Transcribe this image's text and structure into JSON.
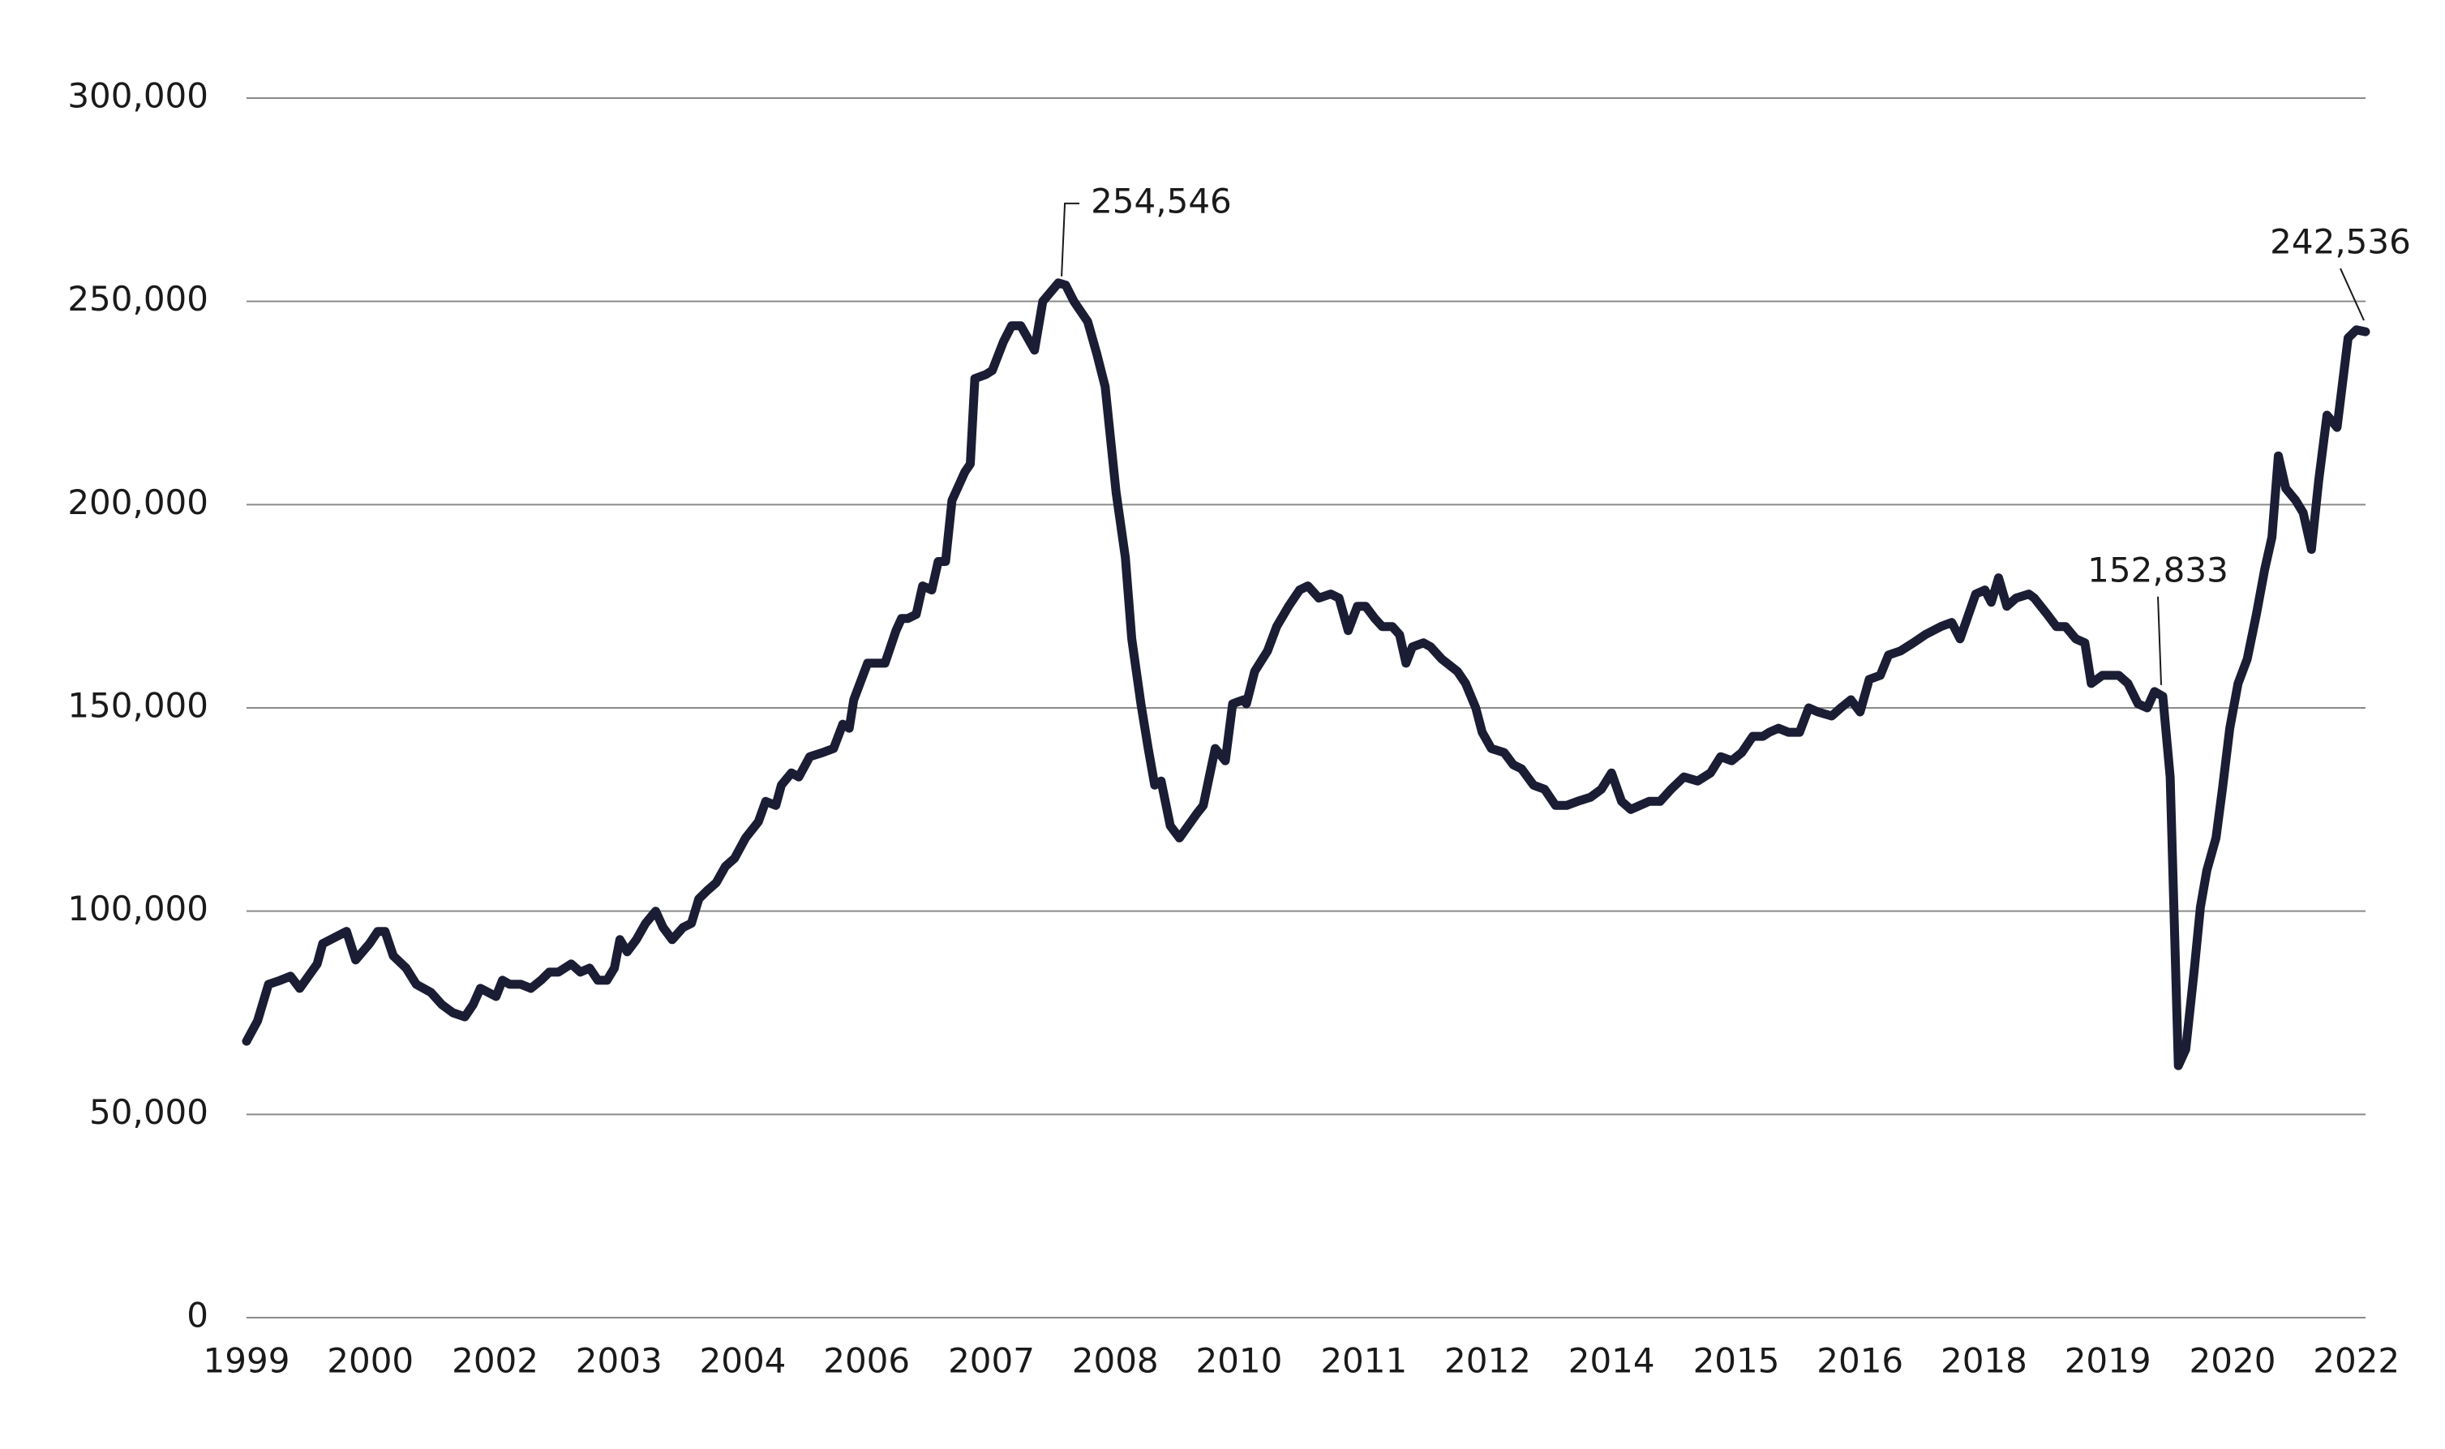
{
  "chart_data": {
    "type": "line",
    "x": [
      1999.0,
      1999.12,
      1999.24,
      1999.37,
      1999.48,
      1999.58,
      1999.77,
      1999.83,
      2000.09,
      2000.19,
      2000.34,
      2000.43,
      2000.51,
      2000.6,
      2000.74,
      2000.85,
      2001.01,
      2001.13,
      2001.25,
      2001.38,
      2001.47,
      2001.55,
      2001.72,
      2001.79,
      2001.87,
      2001.99,
      2002.1,
      2002.21,
      2002.3,
      2002.4,
      2002.54,
      2002.64,
      2002.74,
      2002.83,
      2002.93,
      2003.01,
      2003.07,
      2003.15,
      2003.25,
      2003.35,
      2003.46,
      2003.54,
      2003.64,
      2003.76,
      2003.85,
      2003.93,
      2004.02,
      2004.12,
      2004.22,
      2004.32,
      2004.44,
      2004.58,
      2004.66,
      2004.77,
      2004.83,
      2004.94,
      2005.02,
      2005.14,
      2005.28,
      2005.4,
      2005.5,
      2005.57,
      2005.62,
      2005.77,
      2005.91,
      2005.96,
      2006.08,
      2006.14,
      2006.21,
      2006.3,
      2006.37,
      2006.47,
      2006.54,
      2006.62,
      2006.69,
      2006.83,
      2006.89,
      2006.94,
      2007.06,
      2007.13,
      2007.25,
      2007.34,
      2007.44,
      2007.59,
      2007.68,
      2007.85,
      2007.93,
      2008.02,
      2008.17,
      2008.27,
      2008.36,
      2008.48,
      2008.58,
      2008.65,
      2008.75,
      2008.83,
      2008.9,
      2008.97,
      2009.07,
      2009.17,
      2009.36,
      2009.43,
      2009.56,
      2009.67,
      2009.75,
      2009.87,
      2009.9,
      2009.99,
      2010.13,
      2010.23,
      2010.36,
      2010.48,
      2010.57,
      2010.69,
      2010.82,
      2010.91,
      2011.01,
      2011.11,
      2011.2,
      2011.3,
      2011.38,
      2011.49,
      2011.57,
      2011.64,
      2011.71,
      2011.83,
      2011.91,
      2012.03,
      2012.2,
      2012.29,
      2012.4,
      2012.47,
      2012.57,
      2012.71,
      2012.81,
      2012.9,
      2013.03,
      2013.15,
      2013.27,
      2013.39,
      2013.51,
      2013.65,
      2013.77,
      2013.88,
      2013.99,
      2014.09,
      2014.19,
      2014.29,
      2014.41,
      2014.53,
      2014.67,
      2014.82,
      2014.96,
      2015.07,
      2015.19,
      2015.3,
      2015.42,
      2015.53,
      2015.6,
      2015.7,
      2015.81,
      2015.93,
      2016.03,
      2016.13,
      2016.28,
      2016.38,
      2016.49,
      2016.59,
      2016.69,
      2016.81,
      2016.9,
      2017.03,
      2017.17,
      2017.3,
      2017.47,
      2017.59,
      2017.68,
      2017.85,
      2017.95,
      2018.02,
      2018.1,
      2018.19,
      2018.29,
      2018.43,
      2018.49,
      2018.63,
      2018.73,
      2018.83,
      2018.94,
      2019.04,
      2019.11,
      2019.23,
      2019.31,
      2019.41,
      2019.51,
      2019.62,
      2019.72,
      2019.8,
      2019.89,
      2019.97,
      2020.06,
      2020.14,
      2020.23,
      2020.3,
      2020.37,
      2020.47,
      2020.54,
      2020.62,
      2020.71,
      2020.81,
      2020.91,
      2021.0,
      2021.08,
      2021.15,
      2021.23,
      2021.34,
      2021.42,
      2021.51,
      2021.59,
      2021.68,
      2021.79,
      2021.91,
      2022.0,
      2022.1
    ],
    "series": [
      {
        "color": "#1a1d33",
        "values": [
          68000,
          73000,
          82000,
          83000,
          84000,
          81000,
          87000,
          92000,
          95000,
          88000,
          92000,
          95000,
          95000,
          89000,
          86000,
          82000,
          80000,
          77000,
          75000,
          74000,
          77000,
          81000,
          79000,
          83000,
          82000,
          82000,
          81000,
          83000,
          85000,
          85000,
          87000,
          85000,
          86000,
          83000,
          83000,
          86000,
          93000,
          90000,
          93000,
          97000,
          100000,
          96000,
          93000,
          96000,
          97000,
          103000,
          105000,
          107000,
          111000,
          113000,
          118000,
          122000,
          127000,
          126000,
          131000,
          134000,
          133000,
          138000,
          139000,
          140000,
          146000,
          145000,
          152000,
          161000,
          161000,
          161000,
          169000,
          172000,
          172000,
          173000,
          180000,
          179000,
          186000,
          186000,
          201000,
          208000,
          210000,
          231000,
          232000,
          233000,
          240000,
          244000,
          244000,
          238000,
          250000,
          254546,
          254000,
          250000,
          245000,
          237000,
          229000,
          203000,
          187000,
          167000,
          151000,
          140000,
          131000,
          132000,
          121000,
          118000,
          124000,
          126000,
          140000,
          137000,
          151000,
          152000,
          151000,
          159000,
          164000,
          170000,
          175000,
          179000,
          180000,
          177000,
          178000,
          177000,
          169000,
          175000,
          175000,
          172000,
          170000,
          170000,
          168000,
          161000,
          165000,
          166000,
          165000,
          162000,
          159000,
          156000,
          150000,
          144000,
          140000,
          139000,
          136000,
          135000,
          131000,
          130000,
          126000,
          126000,
          127000,
          128000,
          130000,
          134000,
          127000,
          125000,
          126000,
          127000,
          127000,
          130000,
          133000,
          132000,
          134000,
          138000,
          137000,
          139000,
          143000,
          143000,
          144000,
          145000,
          144000,
          144000,
          150000,
          149000,
          148000,
          150000,
          152000,
          149000,
          157000,
          158000,
          163000,
          164000,
          166000,
          168000,
          170000,
          171000,
          167000,
          178000,
          179000,
          176000,
          182000,
          175000,
          177000,
          178000,
          177000,
          173000,
          170000,
          170000,
          167000,
          166000,
          156000,
          158000,
          158000,
          158000,
          156000,
          151000,
          150000,
          154000,
          152833,
          133000,
          62000,
          66000,
          85000,
          101000,
          110000,
          118000,
          130000,
          145000,
          156000,
          162000,
          173000,
          184000,
          192000,
          212000,
          204000,
          201000,
          198000,
          189000,
          206000,
          222000,
          219000,
          241000,
          243000,
          242536
        ],
        "value_labels": [
          null,
          null,
          null,
          null,
          null,
          null,
          null,
          null,
          null,
          null,
          null,
          null,
          null,
          null,
          null,
          null,
          null,
          null,
          null,
          null,
          null,
          null,
          null,
          null,
          null,
          null,
          null,
          null,
          null,
          null,
          null,
          null,
          null,
          null,
          null,
          null,
          null,
          null,
          null,
          null,
          null,
          null,
          null,
          null,
          null,
          null,
          null,
          null,
          null,
          null,
          null,
          null,
          null,
          null,
          null,
          null,
          null,
          null,
          null,
          null,
          null,
          null,
          null,
          null,
          null,
          null,
          null,
          null,
          null,
          null,
          null,
          null,
          null,
          null,
          null,
          null,
          null,
          null,
          null,
          null,
          null,
          null,
          null,
          null,
          null,
          "254,546",
          null,
          null,
          null,
          null,
          null,
          null,
          null,
          null,
          null,
          null,
          null,
          null,
          null,
          null,
          null,
          null,
          null,
          null,
          null,
          null,
          null,
          null,
          null,
          null,
          null,
          null,
          null,
          null,
          null,
          null,
          null,
          null,
          null,
          null,
          null,
          null,
          null,
          null,
          null,
          null,
          null,
          null,
          null,
          null,
          null,
          null,
          null,
          null,
          null,
          null,
          null,
          null,
          null,
          null,
          null,
          null,
          null,
          null,
          null,
          null,
          null,
          null,
          null,
          null,
          null,
          null,
          null,
          null,
          null,
          null,
          null,
          null,
          null,
          null,
          null,
          null,
          null,
          null,
          null,
          null,
          null,
          null,
          null,
          null,
          null,
          null,
          null,
          null,
          null,
          null,
          null,
          null,
          null,
          null,
          null,
          null,
          null,
          null,
          null,
          null,
          null,
          null,
          null,
          null,
          null,
          null,
          null,
          null,
          null,
          null,
          null,
          null,
          "152,833",
          null,
          null,
          null,
          null,
          null,
          null,
          null,
          null,
          null,
          null,
          null,
          null,
          null,
          null,
          null,
          null,
          null,
          null,
          null,
          null,
          null,
          null,
          null,
          null,
          "242,536"
        ]
      }
    ],
    "xlim": [
      1999,
      2022.1
    ],
    "xticks": [
      1999,
      {
        "value": 2000.35,
        "label": "2000"
      },
      {
        "value": 2001.71,
        "label": "2002"
      },
      {
        "value": 2003.06,
        "label": "2003"
      },
      {
        "value": 2004.41,
        "label": "2004"
      },
      {
        "value": 2005.76,
        "label": "2006"
      },
      {
        "value": 2007.12,
        "label": "2007"
      },
      {
        "value": 2008.47,
        "label": "2008"
      },
      {
        "value": 2009.82,
        "label": "2010"
      },
      {
        "value": 2011.18,
        "label": "2011"
      },
      {
        "value": 2012.53,
        "label": "2012"
      },
      {
        "value": 2013.88,
        "label": "2014"
      },
      {
        "value": 2015.24,
        "label": "2015"
      },
      {
        "value": 2016.59,
        "label": "2016"
      },
      {
        "value": 2017.94,
        "label": "2018"
      },
      {
        "value": 2019.29,
        "label": "2019"
      },
      {
        "value": 2020.65,
        "label": "2020"
      },
      2022
    ],
    "ylim": [
      0,
      300000
    ],
    "yticks": [
      0,
      {
        "value": 50000,
        "label": "50,000"
      },
      {
        "value": 100000,
        "label": "100,000"
      },
      {
        "value": 150000,
        "label": "150,000"
      },
      {
        "value": 200000,
        "label": "200,000"
      },
      {
        "value": 250000,
        "label": "250,000"
      },
      {
        "value": 300000,
        "label": "300,000"
      }
    ],
    "grid": true
  }
}
